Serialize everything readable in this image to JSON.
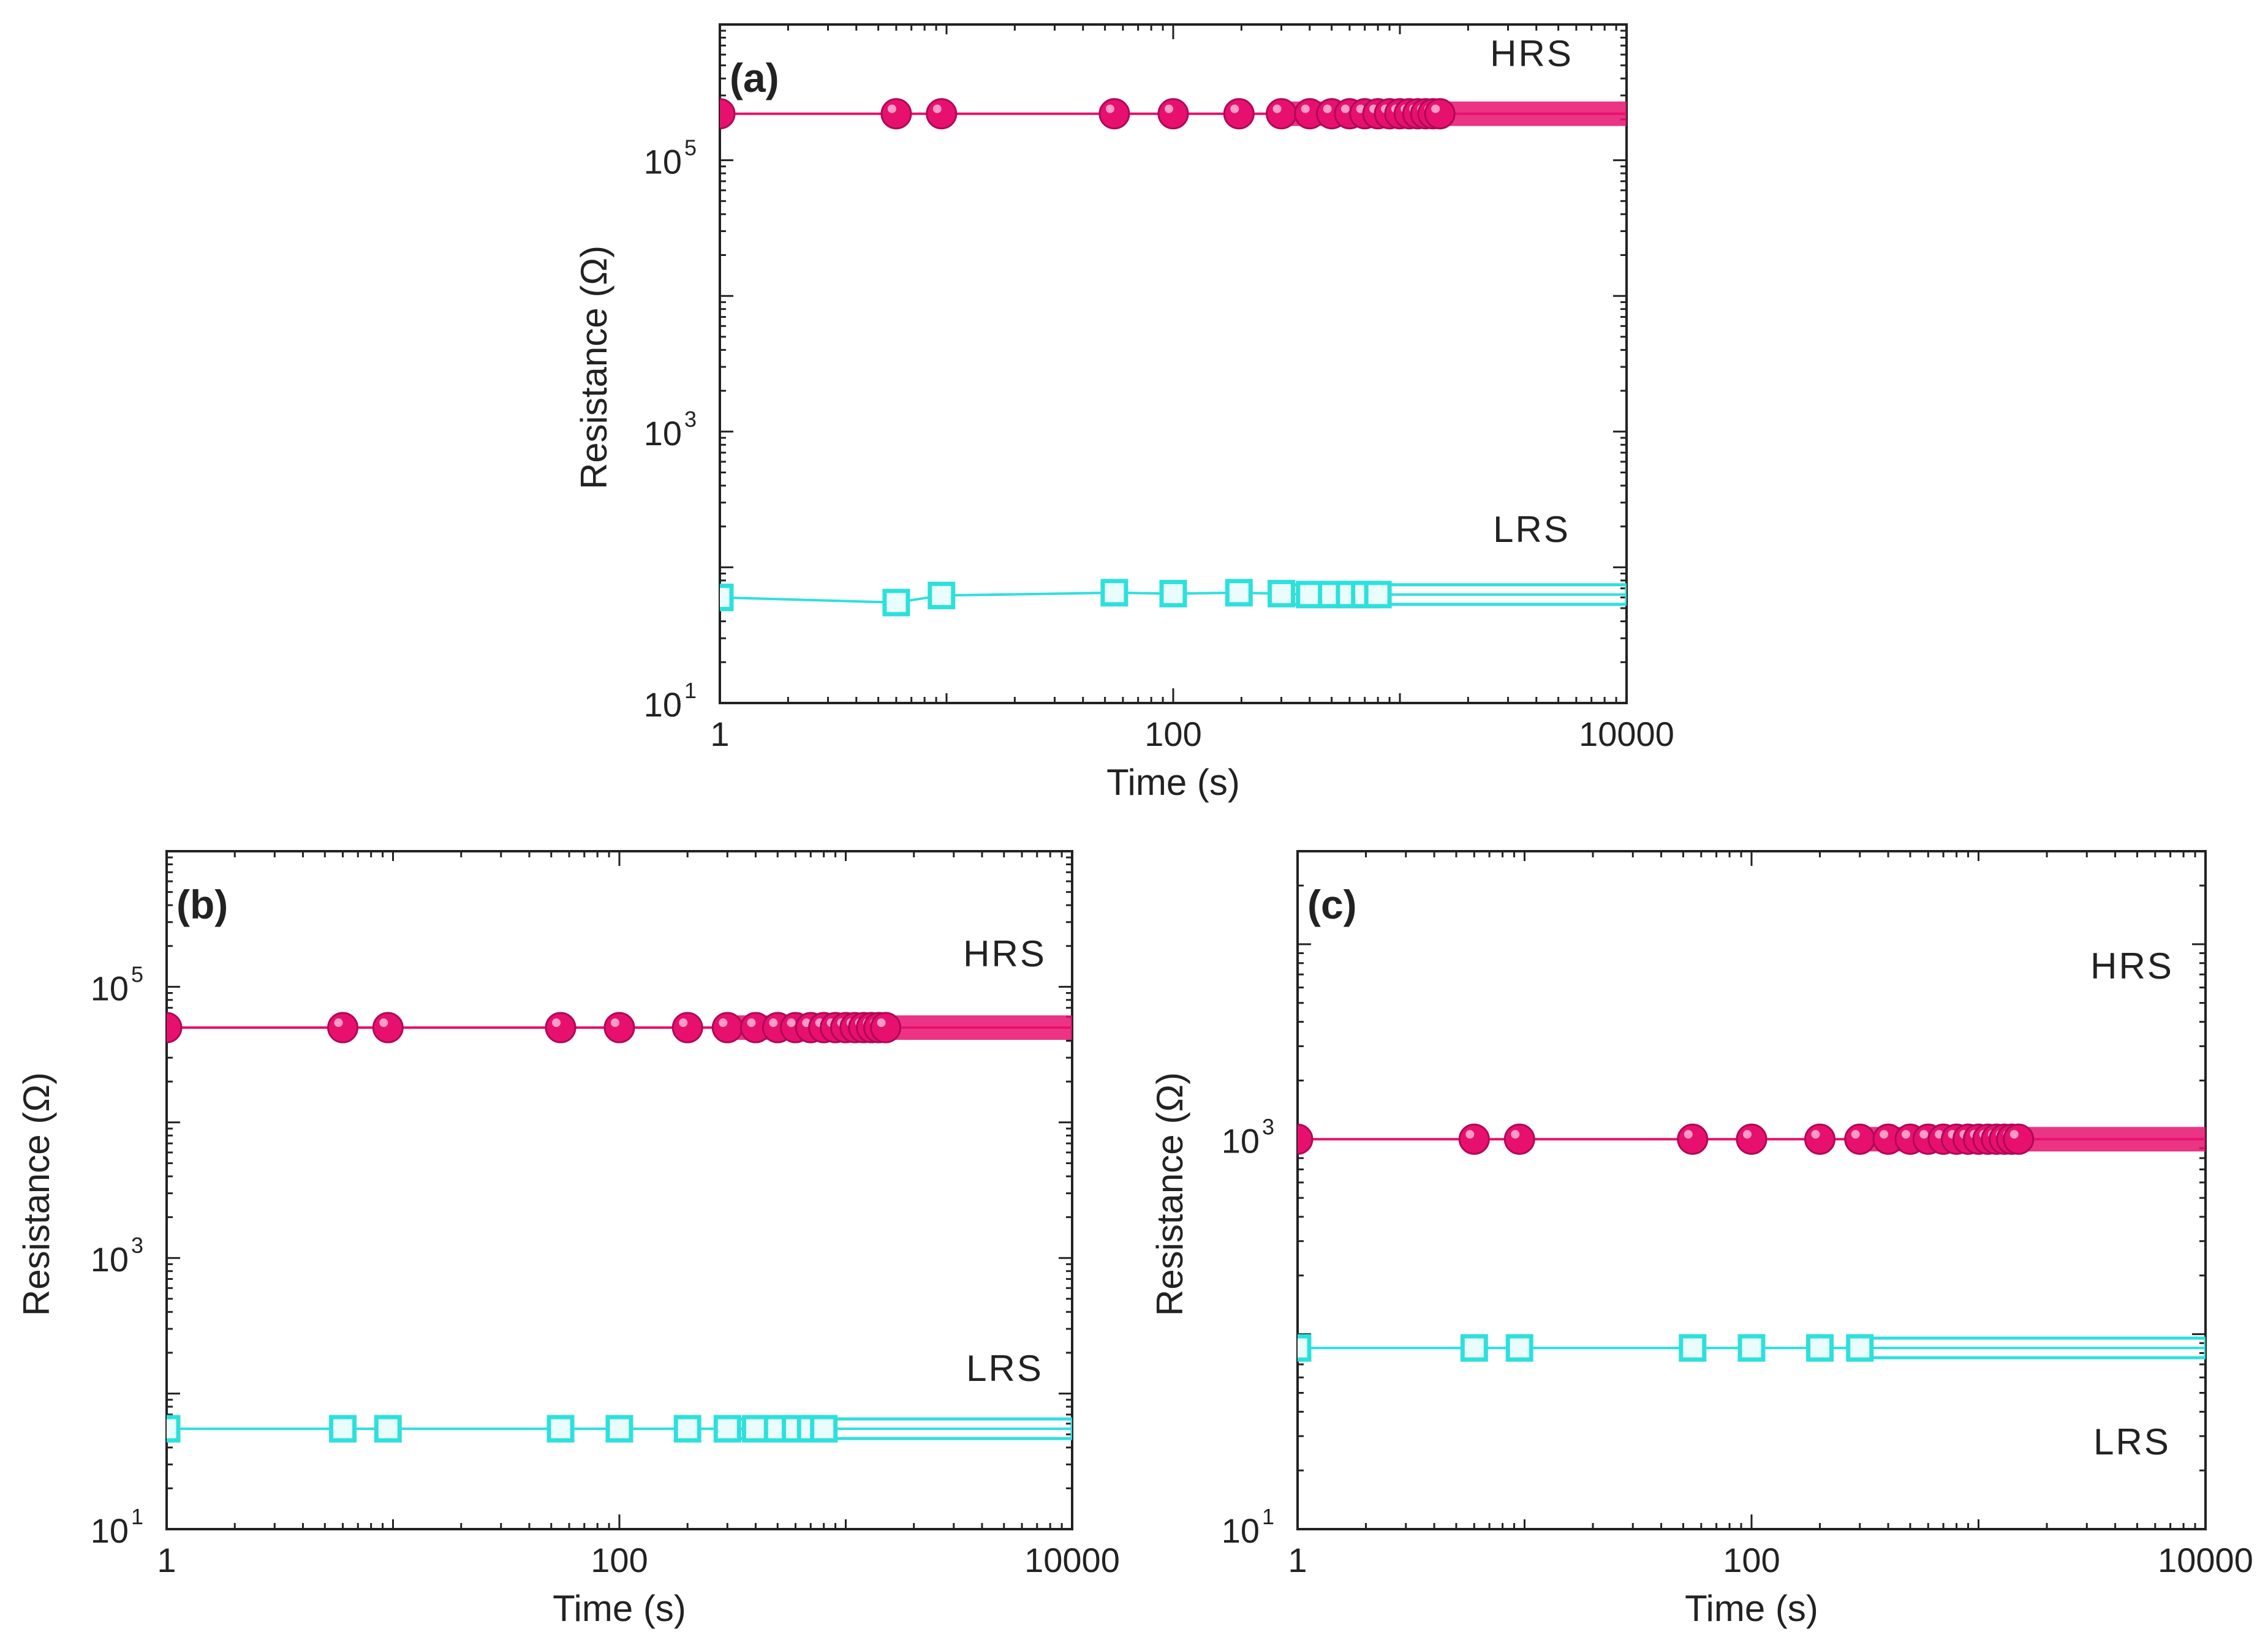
{
  "figure": {
    "background": "#ffffff",
    "hrs_color": "#e8106e",
    "lrs_color": "#2de0dc",
    "axis_color": "#222222"
  },
  "chart_data": [
    {
      "type": "line",
      "panel_label": "(a)",
      "title": "",
      "xlabel": "Time (s)",
      "ylabel": "Resistance (Ω)",
      "xscale": "log",
      "yscale": "log",
      "xlim": [
        1,
        10000
      ],
      "ylim": [
        10,
        1000000
      ],
      "xticks": [
        "1",
        "100",
        "10000"
      ],
      "yticks": [
        {
          "base": "10",
          "exp": "1"
        },
        {
          "base": "10",
          "exp": "3"
        },
        {
          "base": "10",
          "exp": "5"
        }
      ],
      "series": [
        {
          "name": "HRS",
          "marker": "circle",
          "color": "#e8106e",
          "x": [
            1,
            6,
            9.5,
            55,
            100,
            195,
            300,
            400,
            500,
            600,
            700,
            800,
            900,
            1000,
            1100,
            1200,
            1300,
            1400,
            1500
          ],
          "y": [
            220000,
            220000,
            220000,
            220000,
            220000,
            220000,
            220000,
            220000,
            220000,
            220000,
            220000,
            220000,
            220000,
            220000,
            220000,
            220000,
            220000,
            220000,
            220000
          ]
        },
        {
          "name": "LRS",
          "marker": "square",
          "color": "#2de0dc",
          "x": [
            1,
            6,
            9.5,
            55,
            100,
            195,
            300,
            400,
            500,
            600,
            700,
            800
          ],
          "y": [
            60,
            55,
            62,
            65,
            64,
            65,
            64,
            63,
            63,
            63,
            63,
            63
          ]
        }
      ],
      "series_labels": [
        {
          "text": "HRS",
          "near": "top-right"
        },
        {
          "text": "LRS",
          "near": "right"
        }
      ]
    },
    {
      "type": "line",
      "panel_label": "(b)",
      "title": "",
      "xlabel": "Time (s)",
      "ylabel": "Resistance (Ω)",
      "xscale": "log",
      "yscale": "log",
      "xlim": [
        1,
        10000
      ],
      "ylim": [
        10,
        1000000
      ],
      "xticks": [
        "1",
        "100",
        "10000"
      ],
      "yticks": [
        {
          "base": "10",
          "exp": "1"
        },
        {
          "base": "10",
          "exp": "3"
        },
        {
          "base": "10",
          "exp": "5"
        }
      ],
      "series": [
        {
          "name": "HRS",
          "marker": "circle",
          "color": "#e8106e",
          "x": [
            1,
            6,
            9.5,
            55,
            100,
            200,
            300,
            400,
            500,
            600,
            700,
            800,
            900,
            1000,
            1100,
            1200,
            1300,
            1400,
            1500
          ],
          "y": [
            50000,
            50000,
            50000,
            50000,
            50000,
            50000,
            50000,
            50000,
            50000,
            50000,
            50000,
            50000,
            50000,
            50000,
            50000,
            50000,
            50000,
            50000,
            50000
          ]
        },
        {
          "name": "LRS",
          "marker": "square",
          "color": "#2de0dc",
          "x": [
            1,
            6,
            9.5,
            55,
            100,
            200,
            300,
            400,
            500,
            600,
            700,
            800
          ],
          "y": [
            55,
            55,
            55,
            55,
            55,
            55,
            55,
            55,
            55,
            55,
            55,
            55
          ]
        }
      ],
      "series_labels": [
        {
          "text": "HRS",
          "near": "top-right"
        },
        {
          "text": "LRS",
          "near": "right"
        }
      ]
    },
    {
      "type": "line",
      "panel_label": "(c)",
      "title": "",
      "xlabel": "Time (s)",
      "ylabel": "Resistance (Ω)",
      "xscale": "log",
      "yscale": "log",
      "xlim": [
        1,
        10000
      ],
      "ylim": [
        10,
        30000
      ],
      "xticks": [
        "1",
        "100",
        "10000"
      ],
      "yticks": [
        {
          "base": "10",
          "exp": "1"
        },
        {
          "base": "10",
          "exp": "3"
        }
      ],
      "series": [
        {
          "name": "HRS",
          "marker": "circle",
          "color": "#e8106e",
          "x": [
            1,
            6,
            9.5,
            55,
            100,
            200,
            300,
            400,
            500,
            600,
            700,
            800,
            900,
            1000,
            1100,
            1200,
            1300,
            1400,
            1500
          ],
          "y": [
            1000,
            1000,
            1000,
            1000,
            1000,
            1000,
            1000,
            1000,
            1000,
            1000,
            1000,
            1000,
            1000,
            1000,
            1000,
            1000,
            1000,
            1000,
            1000
          ]
        },
        {
          "name": "LRS",
          "marker": "square",
          "color": "#2de0dc",
          "x": [
            1,
            6,
            9.5,
            55,
            100,
            200,
            300
          ],
          "y": [
            85,
            85,
            85,
            85,
            85,
            85,
            85
          ]
        }
      ],
      "series_labels": [
        {
          "text": "HRS",
          "near": "top-right"
        },
        {
          "text": "LRS",
          "near": "bottom-right"
        }
      ]
    }
  ]
}
